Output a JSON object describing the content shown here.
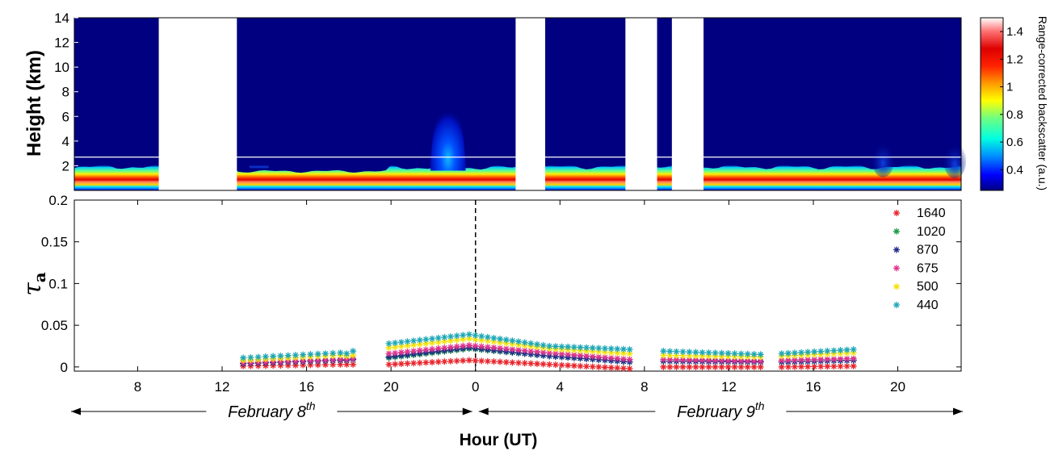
{
  "chart_data": [
    {
      "type": "heatmap",
      "ylabel": "Height (km)",
      "ylim": [
        0,
        14
      ],
      "yticks": [
        "14",
        "12",
        "10",
        "8",
        "6",
        "4",
        "2"
      ],
      "x_range_hours": [
        5,
        47
      ],
      "colorbar": {
        "label": "Range-corrected backscatter (a.u.)",
        "ticks": [
          "1.4",
          "1.2",
          "1",
          "0.8",
          "0.6",
          "0.4"
        ],
        "range": [
          0.25,
          1.5
        ],
        "colormap": "jet-to-white"
      },
      "no_data_intervals_hours": [
        [
          9.0,
          12.7
        ],
        [
          25.9,
          27.3
        ],
        [
          31.1,
          32.6
        ],
        [
          33.3,
          34.8
        ]
      ],
      "reference_line_height_km": 2.7,
      "plume": {
        "center_hour": 22.7,
        "top_km": 8.2
      }
    },
    {
      "type": "scatter",
      "ylabel": "τa",
      "ylabel_subscript": "a",
      "ylabel_main": "τ",
      "xlabel": "Hour (UT)",
      "ylim": [
        -0.005,
        0.2
      ],
      "yticks": [
        "0.2",
        "0.15",
        "0.1",
        "0.05",
        "0"
      ],
      "xticks": [
        "8",
        "12",
        "16",
        "20",
        "0",
        "4",
        "8",
        "12",
        "16",
        "20"
      ],
      "xtick_hours": [
        8,
        12,
        16,
        20,
        24,
        28,
        32,
        36,
        40,
        44
      ],
      "midnight_hour": 24,
      "date_spans": [
        {
          "label": "February 8",
          "sup": "th",
          "from_hour": 5,
          "to_hour": 24
        },
        {
          "label": "February 9",
          "sup": "th",
          "from_hour": 24,
          "to_hour": 47
        }
      ],
      "segments": [
        {
          "x": [
            13.0,
            17.6
          ],
          "n": 14
        },
        {
          "x": [
            17.9,
            18.2
          ],
          "n": 2
        },
        {
          "x": [
            19.9,
            31.3
          ],
          "n": 40
        },
        {
          "x": [
            32.9,
            37.5
          ],
          "n": 16
        },
        {
          "x": [
            38.5,
            41.9
          ],
          "n": 12
        }
      ],
      "series": [
        {
          "name": "1640",
          "color": "#e8262c",
          "values_by_segment": [
            [
              0.001,
              0.003
            ],
            [
              0.003,
              0.003
            ],
            [
              0.003,
              0.008,
              0.003,
              -0.002
            ],
            [
              0.0,
              0.0
            ],
            [
              0.0,
              0.001
            ]
          ]
        },
        {
          "name": "1020",
          "color": "#1e9a44",
          "values_by_segment": [
            [
              0.004,
              0.008
            ],
            [
              0.008,
              0.009
            ],
            [
              0.011,
              0.022,
              0.013,
              0.006
            ],
            [
              0.007,
              0.006
            ],
            [
              0.006,
              0.008
            ]
          ]
        },
        {
          "name": "870",
          "color": "#1d2a8c",
          "values_by_segment": [
            [
              0.004,
              0.008
            ],
            [
              0.008,
              0.009
            ],
            [
              0.012,
              0.023,
              0.013,
              0.006
            ],
            [
              0.007,
              0.006
            ],
            [
              0.006,
              0.008
            ]
          ]
        },
        {
          "name": "675",
          "color": "#e2338e",
          "values_by_segment": [
            [
              0.005,
              0.009
            ],
            [
              0.009,
              0.01
            ],
            [
              0.016,
              0.026,
              0.017,
              0.009
            ],
            [
              0.009,
              0.007
            ],
            [
              0.008,
              0.01
            ]
          ]
        },
        {
          "name": "500",
          "color": "#f4e20a",
          "values_by_segment": [
            [
              0.008,
              0.014
            ],
            [
              0.013,
              0.014
            ],
            [
              0.023,
              0.034,
              0.022,
              0.016
            ],
            [
              0.014,
              0.012
            ],
            [
              0.013,
              0.017
            ]
          ]
        },
        {
          "name": "440",
          "color": "#1ea7b8",
          "values_by_segment": [
            [
              0.011,
              0.017
            ],
            [
              0.016,
              0.019
            ],
            [
              0.028,
              0.039,
              0.025,
              0.021
            ],
            [
              0.019,
              0.015
            ],
            [
              0.016,
              0.021
            ]
          ]
        }
      ],
      "legend_position": "top-right"
    }
  ]
}
